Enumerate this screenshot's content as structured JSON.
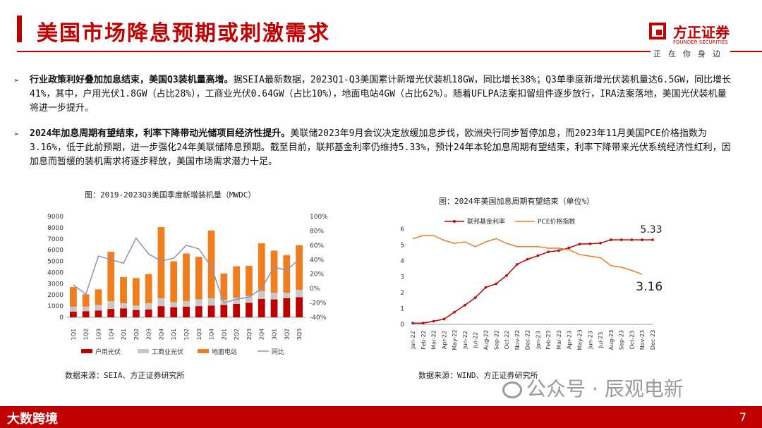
{
  "header": {
    "title": "美国市场降息预期或刺激需求",
    "logo_cn": "方正证券",
    "logo_en": "FOUNDER SECURITIES",
    "slogan": "正在你身边"
  },
  "paragraphs": [
    {
      "bullet": "➢",
      "bold": "行业政策利好叠加加息结束，美国Q3装机量高增。",
      "text": "据SEIA最新数据，2023Q1-Q3美国累计新增光伏装机18GW，同比增长38%；Q3单季度新增光伏装机量达6.5GW，同比增长41%，其中，户用光伏1.8GW（占比28%），工商业光伏0.64GW（占比10%），地面电站4GW（占比62%）。随着UFLPA法案扣留组件逐步放行，IRA法案落地，美国光伏装机量将进一步提升。"
    },
    {
      "bullet": "➢",
      "bold": "2024年加息周期有望结束，利率下降带动光储项目经济性提升。",
      "text": "美联储2023年9月会议决定放缓加息步伐，欧洲央行同步暂停加息，而2023年11月美国PCE价格指数为3.16%，低于此前预期，进一步强化24年美联储降息预期。截至目前，联邦基金利率仍维持5.33%，预计24年本轮加息周期有望结束，利率下降带来光伏系统经济性红利，因加息而暂缓的装机需求将逐步释放，美国市场需求潜力十足。"
    }
  ],
  "figures": {
    "left_title": "图：2019-2023Q3美国季度新增装机量（MWDC）",
    "left_source": "数据来源：SEIA、方正证券研究所",
    "right_title": "图：2024年美国加息周期有望结束（单位%）",
    "right_source": "数据来源：WIND、方正证券研究所"
  },
  "footer": {
    "logo": "大数跨境",
    "page": "7"
  },
  "watermark": "公众号 · 辰观电新",
  "chart_data": [
    {
      "type": "bar",
      "stacked": true,
      "categories": [
        "1Q1",
        "1Q2",
        "1Q3",
        "1Q4",
        "2Q1",
        "2Q2",
        "2Q3",
        "2Q4",
        "1Q1",
        "1Q2",
        "1Q3",
        "1Q4",
        "2Q1",
        "2Q2",
        "2Q3",
        "2Q4",
        "3Q1",
        "3Q2",
        "3Q3"
      ],
      "series": [
        {
          "name": "户用光伏",
          "color": "#c00000",
          "values": [
            500,
            550,
            600,
            750,
            800,
            650,
            700,
            1000,
            900,
            950,
            1000,
            1050,
            1100,
            1200,
            1300,
            1650,
            1600,
            1700,
            1800
          ]
        },
        {
          "name": "工商业光伏",
          "color": "#c8c8c8",
          "values": [
            450,
            400,
            500,
            700,
            450,
            400,
            550,
            700,
            450,
            500,
            600,
            650,
            450,
            550,
            600,
            700,
            600,
            500,
            640
          ]
        },
        {
          "name": "地面电站",
          "color": "#f07d1e",
          "values": [
            1750,
            1100,
            1400,
            4400,
            2350,
            2450,
            2600,
            6350,
            3650,
            4250,
            3800,
            6050,
            2350,
            2800,
            2700,
            4250,
            3750,
            3350,
            4000
          ]
        }
      ],
      "line": {
        "name": "同比",
        "color": "#8a93b8",
        "axis": "right",
        "values": [
          5,
          -8,
          45,
          40,
          35,
          70,
          48,
          38,
          42,
          60,
          55,
          30,
          -20,
          -15,
          -12,
          0,
          30,
          25,
          41
        ]
      },
      "ylim": [
        0,
        9000
      ],
      "yticks": [
        0,
        1000,
        2000,
        3000,
        4000,
        5000,
        6000,
        7000,
        8000,
        9000
      ],
      "y2lim": [
        -40,
        100
      ],
      "y2ticks": [
        "-40%",
        "-20%",
        "0%",
        "20%",
        "40%",
        "60%",
        "80%",
        "100%"
      ],
      "legend": "bottom"
    },
    {
      "type": "line",
      "x": [
        "Jan-22",
        "Feb-22",
        "Mar-22",
        "Apr-22",
        "May-22",
        "Jun-22",
        "Jul-22",
        "Aug-22",
        "Sep-22",
        "Oct-22",
        "Nov-22",
        "Dec-22",
        "Jan-23",
        "Feb-23",
        "Mar-23",
        "Apr-23",
        "May-23",
        "Jun-23",
        "Jul-23",
        "Aug-23",
        "Sep-23",
        "Oct-23",
        "Nov-23",
        "Dec-23"
      ],
      "series": [
        {
          "name": "联邦基金利率",
          "color": "#c00000",
          "marker": true,
          "values": [
            0.08,
            0.08,
            0.2,
            0.33,
            0.77,
            1.21,
            1.68,
            2.33,
            2.56,
            3.08,
            3.78,
            4.1,
            4.33,
            4.57,
            4.65,
            4.83,
            5.06,
            5.08,
            5.12,
            5.33,
            5.33,
            5.33,
            5.33,
            5.33
          ]
        },
        {
          "name": "PCE价格指数",
          "color": "#f07d1e",
          "marker": false,
          "values": [
            5.4,
            5.6,
            5.6,
            5.3,
            5.1,
            5.2,
            4.9,
            5.2,
            5.4,
            5.1,
            4.9,
            4.9,
            4.9,
            4.8,
            4.8,
            4.7,
            4.4,
            4.3,
            4.2,
            3.7,
            3.6,
            3.4,
            3.16,
            null
          ]
        }
      ],
      "annotations": [
        "5.33",
        "3.16"
      ],
      "ylim": [
        0,
        6
      ],
      "yticks": [
        0,
        1,
        2,
        3,
        4,
        5,
        6
      ],
      "legend": "top"
    }
  ]
}
